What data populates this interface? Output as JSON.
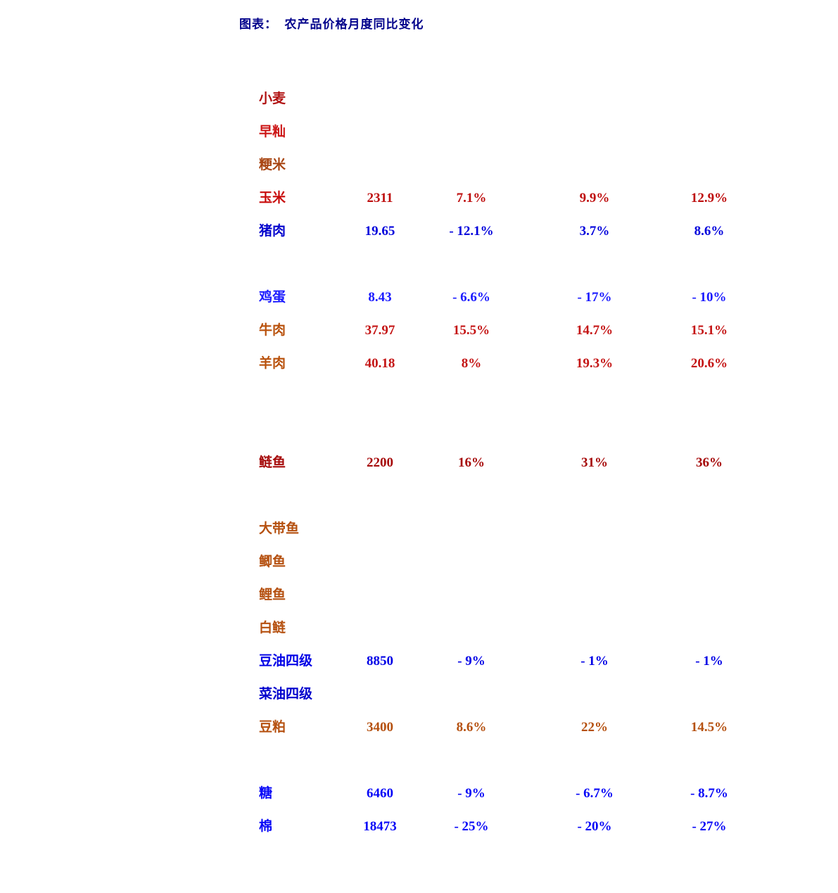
{
  "title": {
    "text": "图表：  农产品价格月度同比变化",
    "color": "#00008B"
  },
  "table": {
    "rows": [
      {
        "label": "小麦",
        "label_color": "#B01010",
        "values": [
          "",
          "",
          "",
          ""
        ],
        "value_color": "#B01010"
      },
      {
        "label": "早籼",
        "label_color": "#CC1515",
        "values": [
          "",
          "",
          "",
          ""
        ],
        "value_color": "#CC1515"
      },
      {
        "label": "粳米",
        "label_color": "#A84512",
        "values": [
          "",
          "",
          "",
          ""
        ],
        "value_color": "#A84512"
      },
      {
        "label": "玉米",
        "label_color": "#C80A0A",
        "values": [
          "2311",
          "7.1%",
          "9.9%",
          "12.9%"
        ],
        "value_color": "#BE0E0E"
      },
      {
        "label": "猪肉",
        "label_color": "#0000CD",
        "values": [
          "19.65",
          "- 12.1%",
          "3.7%",
          "8.6%"
        ],
        "value_color": "#0000DC"
      },
      {
        "label": "",
        "label_color": "#000000",
        "values": [
          "",
          "",
          "",
          ""
        ],
        "value_color": "#000000"
      },
      {
        "label": "鸡蛋",
        "label_color": "#1A1AFF",
        "values": [
          "8.43",
          "- 6.6%",
          "- 17%",
          "- 10%"
        ],
        "value_color": "#1A1AFF"
      },
      {
        "label": "牛肉",
        "label_color": "#B8500A",
        "values": [
          "37.97",
          "15.5%",
          "14.7%",
          "15.1%"
        ],
        "value_color": "#C41414"
      },
      {
        "label": "羊肉",
        "label_color": "#B8500A",
        "values": [
          "40.18",
          "8%",
          "19.3%",
          "20.6%"
        ],
        "value_color": "#C41414"
      },
      {
        "label": "",
        "label_color": "#000000",
        "values": [
          "",
          "",
          "",
          ""
        ],
        "value_color": "#000000"
      },
      {
        "label": "",
        "label_color": "#000000",
        "values": [
          "",
          "",
          "",
          ""
        ],
        "value_color": "#000000"
      },
      {
        "label": "鲢鱼",
        "label_color": "#A60A0A",
        "values": [
          "2200",
          "16%",
          "31%",
          "36%"
        ],
        "value_color": "#A60A0A"
      },
      {
        "label": "",
        "label_color": "#000000",
        "values": [
          "",
          "",
          "",
          ""
        ],
        "value_color": "#000000"
      },
      {
        "label": "大带鱼",
        "label_color": "#B5500F",
        "values": [
          "",
          "",
          "",
          ""
        ],
        "value_color": "#B5500F"
      },
      {
        "label": "鲫鱼",
        "label_color": "#B5500F",
        "values": [
          "",
          "",
          "",
          ""
        ],
        "value_color": "#B5500F"
      },
      {
        "label": "鲤鱼",
        "label_color": "#B5500F",
        "values": [
          "",
          "",
          "",
          ""
        ],
        "value_color": "#B5500F"
      },
      {
        "label": "白鲢",
        "label_color": "#B5500F",
        "values": [
          "",
          "",
          "",
          ""
        ],
        "value_color": "#B5500F"
      },
      {
        "label": "豆油四级",
        "label_color": "#0000E6",
        "values": [
          "8850",
          "- 9%",
          "- 1%",
          "- 1%"
        ],
        "value_color": "#0000E6"
      },
      {
        "label": "菜油四级",
        "label_color": "#0000CD",
        "values": [
          "",
          "",
          "",
          ""
        ],
        "value_color": "#0000CD"
      },
      {
        "label": "豆粕",
        "label_color": "#B5500F",
        "values": [
          "3400",
          "8.6%",
          "22%",
          "14.5%"
        ],
        "value_color": "#B5500F"
      },
      {
        "label": "",
        "label_color": "#000000",
        "values": [
          "",
          "",
          "",
          ""
        ],
        "value_color": "#000000"
      },
      {
        "label": "糖",
        "label_color": "#0707F7",
        "values": [
          "6460",
          "- 9%",
          "- 6.7%",
          "- 8.7%"
        ],
        "value_color": "#0707F7"
      },
      {
        "label": "棉",
        "label_color": "#0707F7",
        "values": [
          "18473",
          "- 25%",
          "- 20%",
          "- 27%"
        ],
        "value_color": "#0707F7"
      }
    ]
  }
}
